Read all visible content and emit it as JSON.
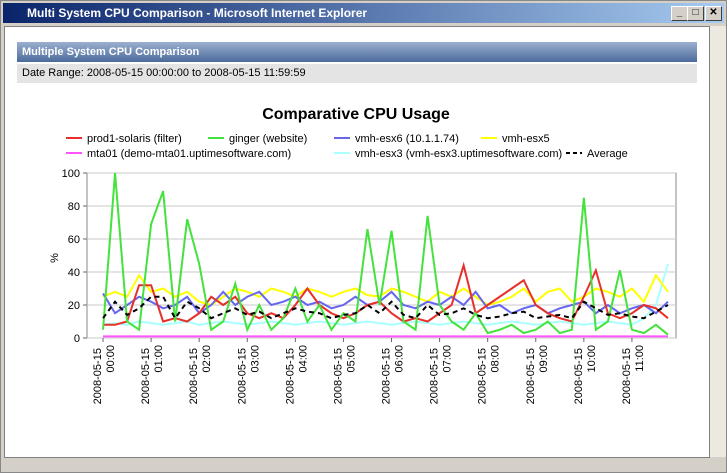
{
  "window": {
    "title": "Multi System CPU Comparison - Microsoft Internet Explorer"
  },
  "header": {
    "title": "Multiple System CPU Comparison",
    "date_range": "Date Range: 2008-05-15 00:00:00 to 2008-05-15 11:59:59"
  },
  "chart_data": {
    "type": "line",
    "title": "Comparative CPU Usage",
    "y_label": "%",
    "grid": true,
    "x": [
      "2008-05-15 00:00",
      "2008-05-15 00:15",
      "2008-05-15 00:30",
      "2008-05-15 00:45",
      "2008-05-15 01:00",
      "2008-05-15 01:15",
      "2008-05-15 01:30",
      "2008-05-15 01:45",
      "2008-05-15 02:00",
      "2008-05-15 02:15",
      "2008-05-15 02:30",
      "2008-05-15 02:45",
      "2008-05-15 03:00",
      "2008-05-15 03:15",
      "2008-05-15 03:30",
      "2008-05-15 03:45",
      "2008-05-15 04:00",
      "2008-05-15 04:15",
      "2008-05-15 04:30",
      "2008-05-15 04:45",
      "2008-05-15 05:00",
      "2008-05-15 05:15",
      "2008-05-15 05:30",
      "2008-05-15 05:45",
      "2008-05-15 06:00",
      "2008-05-15 06:15",
      "2008-05-15 06:30",
      "2008-05-15 06:45",
      "2008-05-15 07:00",
      "2008-05-15 07:15",
      "2008-05-15 07:30",
      "2008-05-15 07:45",
      "2008-05-15 08:00",
      "2008-05-15 08:15",
      "2008-05-15 08:30",
      "2008-05-15 08:45",
      "2008-05-15 09:00",
      "2008-05-15 09:15",
      "2008-05-15 09:30",
      "2008-05-15 09:45",
      "2008-05-15 10:00",
      "2008-05-15 10:15",
      "2008-05-15 10:30",
      "2008-05-15 10:45",
      "2008-05-15 11:00",
      "2008-05-15 11:15",
      "2008-05-15 11:30",
      "2008-05-15 11:45"
    ],
    "xlim": [
      "2008-05-14 23:40",
      "2008-05-15 11:55"
    ],
    "xticks": [
      "2008-05-15 00:00",
      "2008-05-15 01:00",
      "2008-05-15 02:00",
      "2008-05-15 03:00",
      "2008-05-15 04:00",
      "2008-05-15 05:00",
      "2008-05-15 06:00",
      "2008-05-15 07:00",
      "2008-05-15 08:00",
      "2008-05-15 09:00",
      "2008-05-15 10:00",
      "2008-05-15 11:00"
    ],
    "ylim": [
      0,
      100
    ],
    "yticks": [
      0,
      20,
      40,
      60,
      80,
      100
    ],
    "series": [
      {
        "name": "prod1-solaris (filter)",
        "color": "#e8302a",
        "values": [
          8,
          8,
          10,
          32,
          32,
          10,
          12,
          10,
          15,
          25,
          20,
          25,
          15,
          12,
          15,
          12,
          20,
          30,
          20,
          15,
          12,
          15,
          20,
          22,
          15,
          10,
          12,
          10,
          15,
          20,
          44,
          15,
          20,
          25,
          30,
          35,
          20,
          15,
          12,
          10,
          25,
          41,
          15,
          12,
          15,
          20,
          18,
          12
        ]
      },
      {
        "name": "ginger (website)",
        "color": "#44e23c",
        "values": [
          5,
          100,
          10,
          5,
          69,
          89,
          10,
          72,
          45,
          5,
          10,
          33,
          5,
          20,
          5,
          12,
          30,
          10,
          20,
          5,
          15,
          10,
          66,
          20,
          65,
          10,
          5,
          74,
          20,
          10,
          5,
          15,
          3,
          5,
          8,
          3,
          5,
          10,
          3,
          5,
          85,
          5,
          10,
          41,
          5,
          3,
          8,
          2
        ]
      },
      {
        "name": "vmh-esx6 (10.1.1.74)",
        "color": "#6666ee",
        "values": [
          27,
          15,
          20,
          25,
          22,
          18,
          20,
          25,
          15,
          20,
          28,
          20,
          25,
          28,
          20,
          22,
          25,
          20,
          22,
          18,
          20,
          25,
          20,
          22,
          28,
          20,
          18,
          22,
          20,
          25,
          20,
          28,
          18,
          20,
          15,
          18,
          20,
          15,
          18,
          20,
          22,
          15,
          20,
          15,
          18,
          20,
          15,
          22
        ]
      },
      {
        "name": "vmh-esx5",
        "color": "#ffff00",
        "values": [
          25,
          28,
          25,
          38,
          28,
          30,
          25,
          28,
          22,
          20,
          25,
          30,
          28,
          25,
          30,
          28,
          25,
          30,
          28,
          25,
          28,
          30,
          26,
          25,
          30,
          28,
          25,
          22,
          28,
          25,
          30,
          25,
          20,
          22,
          25,
          30,
          22,
          28,
          30,
          22,
          25,
          30,
          28,
          25,
          30,
          22,
          38,
          28
        ]
      },
      {
        "name": "mta01 (demo-mta01.uptimesoftware.com)",
        "color": "#ff55ff",
        "values": [
          1,
          1,
          1,
          1,
          1,
          1,
          1,
          1,
          1,
          1,
          1,
          1,
          1,
          1,
          1,
          1,
          1,
          1,
          1,
          1,
          1,
          1,
          1,
          1,
          1,
          1,
          1,
          1,
          1,
          1,
          1,
          1,
          1,
          1,
          1,
          1,
          1,
          1,
          1,
          1,
          1,
          1,
          1,
          1,
          1,
          1,
          1,
          1
        ]
      },
      {
        "name": "vmh-esx3 (vmh-esx3.uptimesoftware.com)",
        "color": "#aaffff",
        "values": [
          8,
          9,
          8,
          10,
          9,
          8,
          9,
          10,
          8,
          9,
          10,
          9,
          8,
          9,
          10,
          9,
          8,
          9,
          10,
          9,
          8,
          9,
          10,
          9,
          8,
          9,
          10,
          9,
          8,
          9,
          10,
          9,
          8,
          9,
          10,
          9,
          8,
          9,
          10,
          9,
          8,
          9,
          10,
          9,
          8,
          12,
          20,
          45
        ]
      },
      {
        "name": "Average",
        "color": "#000000",
        "dashed": true,
        "values": [
          12,
          22,
          14,
          18,
          25,
          25,
          12,
          22,
          18,
          12,
          15,
          18,
          14,
          16,
          12,
          15,
          18,
          16,
          15,
          12,
          14,
          15,
          20,
          15,
          22,
          14,
          12,
          20,
          14,
          15,
          18,
          14,
          12,
          13,
          15,
          16,
          12,
          13,
          14,
          12,
          22,
          18,
          14,
          15,
          13,
          12,
          16,
          20
        ]
      }
    ]
  }
}
